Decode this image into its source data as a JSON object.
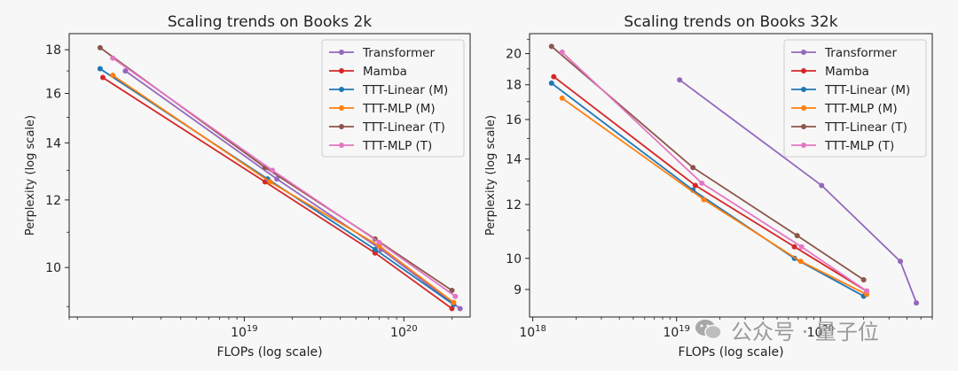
{
  "chart_data": [
    {
      "type": "line",
      "title": "Scaling trends on Books 2k",
      "xlabel": "FLOPs (log scale)",
      "ylabel": "Perplexity (log scale)",
      "xscale": "log",
      "yscale": "log",
      "xlim": [
        8e+17,
        2.6e+20
      ],
      "ylim": [
        8.75,
        18.8
      ],
      "xticks": [
        {
          "value": 1e+19,
          "label": "10",
          "exp": "19"
        },
        {
          "value": 1e+20,
          "label": "10",
          "exp": "20"
        }
      ],
      "yticks": [
        10,
        12,
        14,
        16,
        18
      ],
      "grid": false,
      "legend_position": "top-right",
      "series": [
        {
          "name": "Transformer",
          "color": "#9467bd",
          "x": [
            1.8e+18,
            1.6e+19,
            7.2e+19,
            2.25e+20
          ],
          "y": [
            17.0,
            12.7,
            10.5,
            8.95
          ]
        },
        {
          "name": "Mamba",
          "color": "#d62728",
          "x": [
            1.3e+18,
            1.35e+19,
            6.6e+19,
            2e+20
          ],
          "y": [
            16.7,
            12.6,
            10.4,
            8.95
          ]
        },
        {
          "name": "TTT-Linear (M)",
          "color": "#1f77b4",
          "x": [
            1.25e+18,
            1.4e+19,
            6.6e+19,
            2.05e+20
          ],
          "y": [
            17.1,
            12.7,
            10.5,
            9.05
          ]
        },
        {
          "name": "TTT-MLP (M)",
          "color": "#ff7f0e",
          "x": [
            1.5e+18,
            1.45e+19,
            7e+19,
            2.05e+20
          ],
          "y": [
            16.8,
            12.6,
            10.6,
            9.1
          ]
        },
        {
          "name": "TTT-Linear (T)",
          "color": "#8c564b",
          "x": [
            1.25e+18,
            1.35e+19,
            6.6e+19,
            2e+20
          ],
          "y": [
            18.1,
            13.1,
            10.8,
            9.4
          ]
        },
        {
          "name": "TTT-MLP (T)",
          "color": "#e377c2",
          "x": [
            1.5e+18,
            1.5e+19,
            7e+19,
            2.1e+20
          ],
          "y": [
            17.6,
            13.0,
            10.7,
            9.25
          ]
        }
      ]
    },
    {
      "type": "line",
      "title": "Scaling trends on Books 32k",
      "xlabel": "FLOPs (log scale)",
      "ylabel": "Perplexity (log scale)",
      "xscale": "log",
      "yscale": "log",
      "xlim": [
        9.5e+17,
        6e+20
      ],
      "ylim": [
        8.2,
        21.4
      ],
      "xticks": [
        {
          "value": 1e+18,
          "label": "10",
          "exp": "18"
        },
        {
          "value": 1e+19,
          "label": "10",
          "exp": "19"
        },
        {
          "value": 1e+20,
          "label": "10",
          "exp": "20"
        }
      ],
      "yticks": [
        9,
        10,
        12,
        14,
        16,
        18,
        20
      ],
      "grid": false,
      "legend_position": "top-right",
      "series": [
        {
          "name": "Transformer",
          "color": "#9467bd",
          "x": [
            1.05e+19,
            1.02e+20,
            3.6e+20,
            4.65e+20
          ],
          "y": [
            18.3,
            12.8,
            9.9,
            8.6
          ]
        },
        {
          "name": "Mamba",
          "color": "#d62728",
          "x": [
            1.4e+18,
            1.35e+19,
            6.6e+19,
            2.1e+20
          ],
          "y": [
            18.5,
            12.8,
            10.4,
            8.95
          ]
        },
        {
          "name": "TTT-Linear (M)",
          "color": "#1f77b4",
          "x": [
            1.35e+18,
            1.3e+19,
            6.6e+19,
            2e+20
          ],
          "y": [
            18.1,
            12.6,
            10.0,
            8.8
          ]
        },
        {
          "name": "TTT-MLP (M)",
          "color": "#ff7f0e",
          "x": [
            1.6e+18,
            1.55e+19,
            7.3e+19,
            2.1e+20
          ],
          "y": [
            17.2,
            12.2,
            9.9,
            8.85
          ]
        },
        {
          "name": "TTT-Linear (T)",
          "color": "#8c564b",
          "x": [
            1.35e+18,
            1.3e+19,
            6.9e+19,
            2e+20
          ],
          "y": [
            20.5,
            13.6,
            10.8,
            9.3
          ]
        },
        {
          "name": "TTT-MLP (T)",
          "color": "#e377c2",
          "x": [
            1.6e+18,
            1.5e+19,
            7.4e+19,
            2.1e+20
          ],
          "y": [
            20.1,
            12.9,
            10.4,
            8.95
          ]
        }
      ]
    }
  ],
  "watermark": {
    "text": "公众号 · 量子位",
    "icon": "wechat-icon"
  }
}
